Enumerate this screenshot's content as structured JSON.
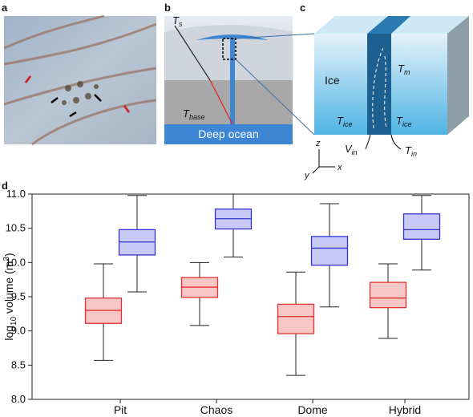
{
  "panels": {
    "a": {
      "label": "a"
    },
    "b": {
      "label": "b",
      "t_s": [
        "T",
        "s"
      ],
      "t_base": [
        "T",
        "base"
      ],
      "ocean": "Deep ocean"
    },
    "c": {
      "label": "c",
      "ice": "Ice",
      "t_m": [
        "T",
        "m"
      ],
      "t_ice_left": [
        "T",
        "ice"
      ],
      "t_ice_right": [
        "T",
        "ice"
      ],
      "v_in": [
        "V",
        "in"
      ],
      "t_in": [
        "T",
        "in"
      ],
      "axes": [
        "z",
        "y",
        "x"
      ]
    },
    "d": {
      "label": "d"
    }
  },
  "chart_data": {
    "type": "box",
    "ylabel": [
      "log",
      "10",
      " volume (m",
      "3",
      ")"
    ],
    "categories": [
      "Pit",
      "Chaos",
      "Dome",
      "Hybrid"
    ],
    "ylim": [
      8,
      11
    ],
    "yticks": [
      {
        "value": 8,
        "label": "8.0"
      },
      8.5,
      {
        "value": 9,
        "label": "9.0"
      },
      9.5,
      {
        "value": 10,
        "label": "10.0"
      },
      10.5,
      {
        "value": 11,
        "label": "11.0"
      }
    ],
    "series": [
      {
        "color": "#e3322f",
        "fill": "#f9c6c6",
        "boxes": [
          {
            "min": 8.57,
            "q1": 9.11,
            "median": 9.3,
            "q3": 9.48,
            "max": 9.98
          },
          {
            "min": 9.08,
            "q1": 9.49,
            "median": 9.64,
            "q3": 9.78,
            "max": 10.0
          },
          {
            "min": 8.35,
            "q1": 8.96,
            "median": 9.21,
            "q3": 9.39,
            "max": 9.86
          },
          {
            "min": 8.89,
            "q1": 9.34,
            "median": 9.48,
            "q3": 9.71,
            "max": 9.98
          }
        ]
      },
      {
        "color": "#3434d2",
        "fill": "#c9c9f6",
        "boxes": [
          {
            "min": 9.57,
            "q1": 10.11,
            "median": 10.3,
            "q3": 10.48,
            "max": 10.98
          },
          {
            "min": 10.08,
            "q1": 10.49,
            "median": 10.64,
            "q3": 10.78,
            "max": 11.0
          },
          {
            "min": 9.35,
            "q1": 9.96,
            "median": 10.21,
            "q3": 10.38,
            "max": 10.86
          },
          {
            "min": 9.89,
            "q1": 10.34,
            "median": 10.48,
            "q3": 10.71,
            "max": 10.98
          }
        ]
      }
    ]
  }
}
